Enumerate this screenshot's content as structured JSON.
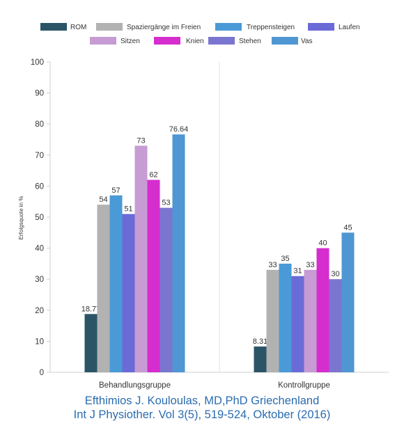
{
  "chart_data": {
    "type": "bar",
    "title": "",
    "xlabel": "",
    "ylabel": "Erfolgsquote in %",
    "ylim": [
      0,
      100
    ],
    "yticks": [
      0,
      10,
      20,
      30,
      40,
      50,
      60,
      70,
      80,
      90,
      100
    ],
    "grid": false,
    "legend_position": "top",
    "categories": [
      "Behandlungsgruppe",
      "Kontrollgruppe"
    ],
    "series": [
      {
        "name": "ROM",
        "color": "#2b5566",
        "values": [
          18.77,
          8.31
        ],
        "labels": [
          "18.77",
          "8.31"
        ]
      },
      {
        "name": "Spaziergänge im Freien",
        "color": "#b2b2b2",
        "values": [
          54,
          33
        ],
        "labels": [
          "54",
          "33"
        ]
      },
      {
        "name": "Treppensteigen",
        "color": "#4a9ad8",
        "values": [
          57,
          35
        ],
        "labels": [
          "57",
          "35"
        ]
      },
      {
        "name": "Laufen",
        "color": "#6a6bd6",
        "values": [
          51,
          31
        ],
        "labels": [
          "51",
          "31"
        ]
      },
      {
        "name": "Sitzen",
        "color": "#c79bd3",
        "values": [
          73,
          33
        ],
        "labels": [
          "73",
          "33"
        ]
      },
      {
        "name": "Knien",
        "color": "#d62dcf",
        "values": [
          62,
          40
        ],
        "labels": [
          "62",
          "40"
        ]
      },
      {
        "name": "Stehen",
        "color": "#7a76cf",
        "values": [
          53,
          30
        ],
        "labels": [
          "53",
          "30"
        ]
      },
      {
        "name": "Vas",
        "color": "#4f97d3",
        "values": [
          76.64,
          45
        ],
        "labels": [
          "76.64",
          "45"
        ]
      }
    ]
  },
  "caption": {
    "line1": "Efthimios J. Kouloulas, MD,PhD Griechenland",
    "line2": "Int J Physiother. Vol 3(5), 519-524, Oktober (2016)"
  }
}
